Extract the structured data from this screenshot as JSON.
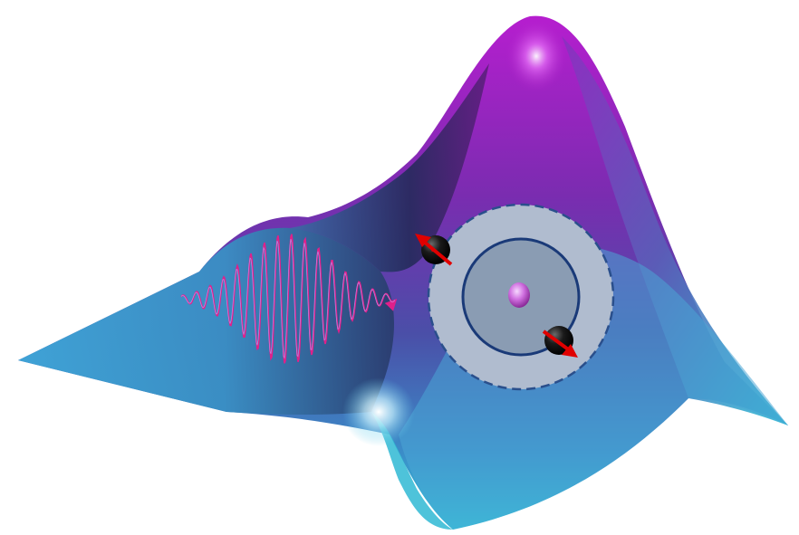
{
  "colors": {
    "background": "#ffffff",
    "surface_peak": "#b01ec8",
    "surface_mid": "#5a3aa8",
    "surface_dark": "#2a2a5a",
    "surface_low": "#3aa0d0",
    "surface_edge": "#30c8d8",
    "highlight": "#ffffff",
    "wave_packet": "#e0208a",
    "atom_shell": "#b0bccf",
    "atom_shell_border": "#2a4f8c",
    "atom_inner": "#8a9cb3",
    "orbit": "#1a3a78",
    "nucleus": "#c86ad8",
    "electron": "#111111",
    "spin_arrow": "#e00000"
  },
  "elements": {
    "surface": "energy-landscape-surface",
    "wave": "light-wave-packet",
    "atom": "atom-schematic",
    "electrons": [
      "electron-spin-up",
      "electron-spin-down"
    ]
  }
}
